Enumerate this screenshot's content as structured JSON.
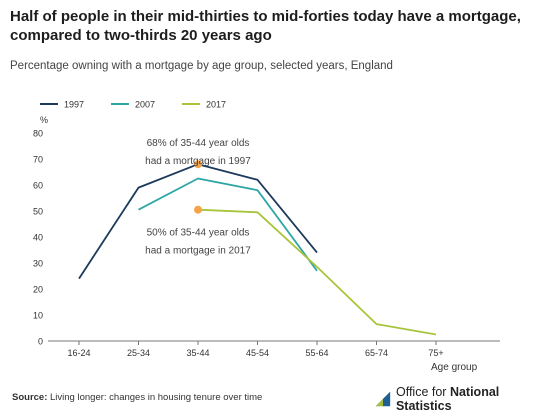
{
  "title": "Half of people in their mid-thirties to mid-forties today have a mortgage, compared to two-thirds 20 years ago",
  "subtitle": "Percentage owning with a mortgage by age group, selected years, England",
  "source_label": "Source:",
  "source_text": "Living longer: changes in housing tenure over time",
  "brand": {
    "prefix": "Office for ",
    "name": "National Statistics",
    "logo_icon": "ons-logo-icon"
  },
  "chart_data": {
    "type": "line",
    "title": "Half of people in their mid-thirties to mid-forties today have a mortgage, compared to two-thirds 20 years ago",
    "subtitle": "Percentage owning with a mortgage by age group, selected years, England",
    "xlabel": "Age group",
    "ylabel": "%",
    "categories": [
      "16-24",
      "25-34",
      "35-44",
      "45-54",
      "55-64",
      "65-74",
      "75+"
    ],
    "ylim": [
      0,
      80
    ],
    "yticks": [
      0,
      10,
      20,
      30,
      40,
      50,
      60,
      70,
      80
    ],
    "grid": false,
    "legend_position": "top-left",
    "series": [
      {
        "name": "1997",
        "color": "#1b3a5c",
        "values": [
          24,
          59,
          68,
          62,
          34,
          null,
          null
        ]
      },
      {
        "name": "2007",
        "color": "#2fa6a6",
        "values": [
          null,
          50.5,
          62.5,
          58,
          27,
          null,
          null
        ]
      },
      {
        "name": "2017",
        "color": "#a8c43a",
        "values": [
          null,
          null,
          50.5,
          49.5,
          28.5,
          6.5,
          2.5
        ]
      }
    ],
    "highlights": [
      {
        "category": "35-44",
        "value": 68,
        "color": "#f4a34a"
      },
      {
        "category": "35-44",
        "value": 50.5,
        "color": "#f4a34a"
      }
    ],
    "annotations": [
      {
        "lines": [
          "68% of 35-44 year olds",
          "had a mortgage in 1997"
        ],
        "category": "35-44",
        "value": 75
      },
      {
        "lines": [
          "50% of 35-44 year olds",
          "had a mortgage in 2017"
        ],
        "category": "35-44",
        "value": 40.5
      }
    ]
  }
}
